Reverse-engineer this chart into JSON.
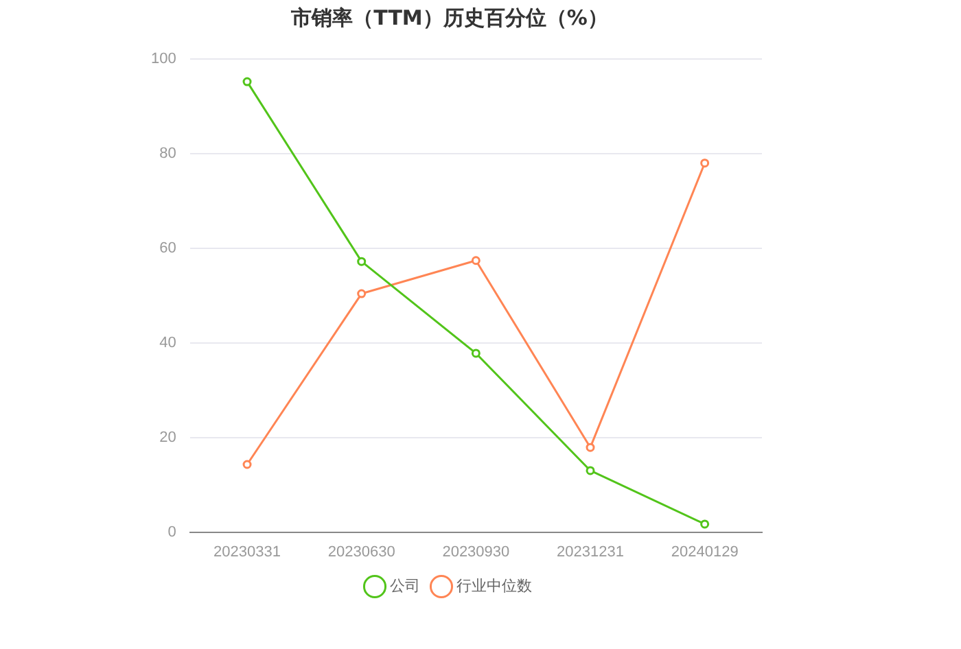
{
  "chart_data": {
    "type": "line",
    "title": "市销率（TTM）历史百分位（%）",
    "categories": [
      "20230331",
      "20230630",
      "20230930",
      "20231231",
      "20240129"
    ],
    "series": [
      {
        "name": "公司",
        "color": "#52c41a",
        "values": [
          95.2,
          57.2,
          37.8,
          13.0,
          1.7
        ]
      },
      {
        "name": "行业中位数",
        "color": "#ff8554",
        "values": [
          14.3,
          50.4,
          57.4,
          17.9,
          78.0
        ]
      }
    ],
    "ylim": [
      0,
      100
    ],
    "yticks": [
      0,
      20,
      40,
      60,
      80,
      100
    ],
    "grid": "y",
    "legend": "bottom",
    "marker": "circle",
    "line_style": "solid"
  }
}
